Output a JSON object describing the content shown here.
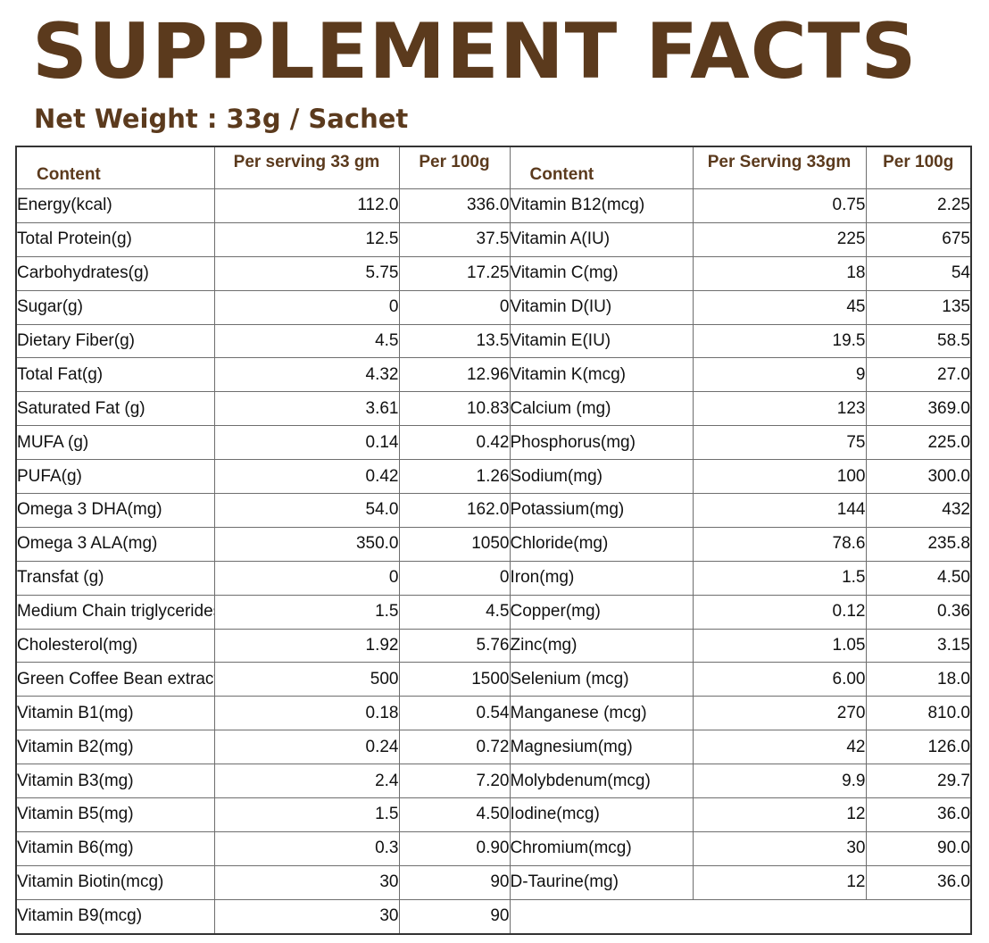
{
  "header": {
    "title": "SUPPLEMENT FACTS",
    "net_weight": "Net Weight : 33g / Sachet"
  },
  "table": {
    "left_headers": {
      "content": "Content",
      "per_serving": "Per serving 33 gm",
      "per_100g": "Per 100g"
    },
    "right_headers": {
      "content": "Content",
      "per_serving": "Per Serving 33gm",
      "per_100g": "Per 100g"
    },
    "left_rows": [
      {
        "name": "Energy(kcal)",
        "serving": "112.0",
        "per100": "336.0"
      },
      {
        "name": "Total Protein(g)",
        "serving": "12.5",
        "per100": "37.5"
      },
      {
        "name": "Carbohydrates(g)",
        "serving": "5.75",
        "per100": "17.25"
      },
      {
        "name": "Sugar(g)",
        "serving": "0",
        "per100": "0"
      },
      {
        "name": "Dietary Fiber(g)",
        "serving": "4.5",
        "per100": "13.5"
      },
      {
        "name": "Total Fat(g)",
        "serving": "4.32",
        "per100": "12.96"
      },
      {
        "name": "Saturated Fat (g)",
        "serving": "3.61",
        "per100": "10.83"
      },
      {
        "name": "MUFA (g)",
        "serving": "0.14",
        "per100": "0.42"
      },
      {
        "name": "PUFA(g)",
        "serving": "0.42",
        "per100": "1.26"
      },
      {
        "name": "Omega 3 DHA(mg)",
        "serving": "54.0",
        "per100": "162.0"
      },
      {
        "name": "Omega 3 ALA(mg)",
        "serving": "350.0",
        "per100": "1050"
      },
      {
        "name": "Transfat (g)",
        "serving": "0",
        "per100": "0"
      },
      {
        "name": "Medium Chain triglycerides(g)",
        "serving": "1.5",
        "per100": "4.5"
      },
      {
        "name": "Cholesterol(mg)",
        "serving": "1.92",
        "per100": "5.76"
      },
      {
        "name": "Green Coffee Bean extract(mg)",
        "serving": "500",
        "per100": "1500"
      },
      {
        "name": "Vitamin B1(mg)",
        "serving": "0.18",
        "per100": "0.54"
      },
      {
        "name": "Vitamin B2(mg)",
        "serving": "0.24",
        "per100": "0.72"
      },
      {
        "name": "Vitamin B3(mg)",
        "serving": "2.4",
        "per100": "7.20"
      },
      {
        "name": "Vitamin B5(mg)",
        "serving": "1.5",
        "per100": "4.50"
      },
      {
        "name": "Vitamin B6(mg)",
        "serving": "0.3",
        "per100": "0.90"
      },
      {
        "name": "Vitamin Biotin(mcg)",
        "serving": "30",
        "per100": "90"
      },
      {
        "name": "Vitamin B9(mcg)",
        "serving": "30",
        "per100": "90"
      }
    ],
    "right_rows": [
      {
        "name": "Vitamin B12(mcg)",
        "serving": "0.75",
        "per100": "2.25"
      },
      {
        "name": "Vitamin A(IU)",
        "serving": "225",
        "per100": "675"
      },
      {
        "name": "Vitamin C(mg)",
        "serving": "18",
        "per100": "54"
      },
      {
        "name": "Vitamin D(IU)",
        "serving": "45",
        "per100": "135"
      },
      {
        "name": "Vitamin E(IU)",
        "serving": "19.5",
        "per100": "58.5"
      },
      {
        "name": "Vitamin K(mcg)",
        "serving": "9",
        "per100": "27.0"
      },
      {
        "name": "Calcium (mg)",
        "serving": "123",
        "per100": "369.0"
      },
      {
        "name": "Phosphorus(mg)",
        "serving": "75",
        "per100": "225.0"
      },
      {
        "name": "Sodium(mg)",
        "serving": "100",
        "per100": "300.0"
      },
      {
        "name": "Potassium(mg)",
        "serving": "144",
        "per100": "432"
      },
      {
        "name": "Chloride(mg)",
        "serving": "78.6",
        "per100": "235.8"
      },
      {
        "name": "Iron(mg)",
        "serving": "1.5",
        "per100": "4.50"
      },
      {
        "name": "Copper(mg)",
        "serving": "0.12",
        "per100": "0.36"
      },
      {
        "name": "Zinc(mg)",
        "serving": "1.05",
        "per100": "3.15"
      },
      {
        "name": "Selenium (mcg)",
        "serving": "6.00",
        "per100": "18.0"
      },
      {
        "name": "Manganese (mcg)",
        "serving": "270",
        "per100": "810.0"
      },
      {
        "name": "Magnesium(mg)",
        "serving": "42",
        "per100": "126.0"
      },
      {
        "name": "Molybdenum(mcg)",
        "serving": "9.9",
        "per100": "29.7"
      },
      {
        "name": "Iodine(mcg)",
        "serving": "12",
        "per100": "36.0"
      },
      {
        "name": "Chromium(mcg)",
        "serving": "30",
        "per100": "90.0"
      },
      {
        "name": "D-Taurine(mg)",
        "serving": "12",
        "per100": "36.0"
      }
    ]
  },
  "colors": {
    "heading_brown": "#5b3a1d",
    "text": "#111111",
    "border": "#6e6e6e"
  }
}
